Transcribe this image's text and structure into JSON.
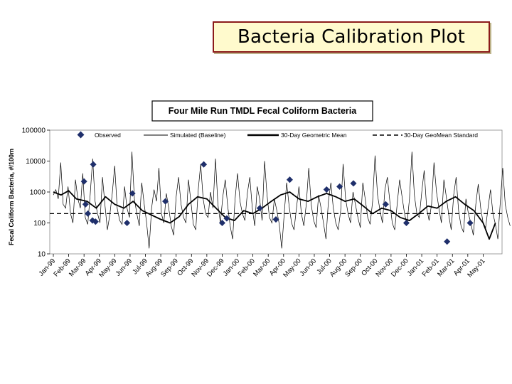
{
  "slide": {
    "title": "Bacteria Calibration Plot"
  },
  "chart_data": {
    "type": "line",
    "title": "Four Mile Run TMDL Fecal Coliform Bacteria",
    "ylabel": "Fecal Coliform Bacteria, #/100m",
    "xlabel": "",
    "yscale": "log",
    "ylim": [
      10,
      100000
    ],
    "y_ticks": [
      "100000",
      "10000",
      "1000",
      "100",
      "10"
    ],
    "x_categories": [
      "Jan-99",
      "Feb-99",
      "Mar-99",
      "Apr-99",
      "May-99",
      "Jun-99",
      "Jul-99",
      "Aug-99",
      "Sep-99",
      "Oct-99",
      "Nov-99",
      "Dec-99",
      "Jan-00",
      "Feb-00",
      "Mar-00",
      "Apr-00",
      "May-00",
      "Jun-00",
      "Jul-00",
      "Aug-00",
      "Sep-00",
      "Oct-00",
      "Nov-00",
      "Dec-00",
      "Jan-01",
      "Feb-01",
      "Mar-01",
      "Apr-01",
      "May-01"
    ],
    "legend_position": "top",
    "grid": false,
    "colors": {
      "observed": "#1f2f6b",
      "line": "#000000"
    },
    "series": [
      {
        "name": "Observed",
        "kind": "marker",
        "points": [
          {
            "x": 2.0,
            "y": 2200
          },
          {
            "x": 2.1,
            "y": 400
          },
          {
            "x": 2.25,
            "y": 200
          },
          {
            "x": 2.6,
            "y": 7800
          },
          {
            "x": 2.55,
            "y": 120
          },
          {
            "x": 2.75,
            "y": 110
          },
          {
            "x": 4.8,
            "y": 100
          },
          {
            "x": 5.15,
            "y": 900
          },
          {
            "x": 7.3,
            "y": 500
          },
          {
            "x": 9.8,
            "y": 7800
          },
          {
            "x": 11.0,
            "y": 100
          },
          {
            "x": 11.3,
            "y": 140
          },
          {
            "x": 13.45,
            "y": 300
          },
          {
            "x": 14.5,
            "y": 130
          },
          {
            "x": 15.4,
            "y": 2500
          },
          {
            "x": 17.8,
            "y": 1200
          },
          {
            "x": 18.65,
            "y": 1500
          },
          {
            "x": 19.55,
            "y": 1900
          },
          {
            "x": 21.65,
            "y": 400
          },
          {
            "x": 23.0,
            "y": 100
          },
          {
            "x": 25.65,
            "y": 25
          },
          {
            "x": 27.15,
            "y": 100
          }
        ]
      },
      {
        "name": "Simulated (Baseline)",
        "kind": "line",
        "start": 0,
        "step": 0.16,
        "values": [
          800,
          1200,
          600,
          9000,
          400,
          300,
          1500,
          200,
          100,
          2500,
          600,
          300,
          4000,
          150,
          90,
          800,
          12000,
          500,
          200,
          100,
          3000,
          400,
          60,
          180,
          900,
          7000,
          300,
          120,
          90,
          1500,
          300,
          150,
          20000,
          600,
          200,
          80,
          2000,
          400,
          100,
          15,
          300,
          1200,
          500,
          6000,
          200,
          100,
          900,
          300,
          80,
          40,
          700,
          3000,
          400,
          150,
          100,
          2500,
          500,
          90,
          60,
          1200,
          8000,
          600,
          200,
          150,
          1000,
          300,
          12000,
          400,
          100,
          700,
          2500,
          350,
          80,
          30,
          600,
          4000,
          500,
          200,
          120,
          900,
          3000,
          300,
          80,
          1500,
          600,
          120,
          10000,
          800,
          150,
          100,
          600,
          250,
          90,
          15,
          200,
          2000,
          350,
          100,
          60,
          300,
          1500,
          200,
          80,
          400,
          6000,
          400,
          120,
          70,
          800,
          300,
          100,
          30,
          500,
          2000,
          300,
          100,
          60,
          250,
          8000,
          600,
          200,
          100,
          1000,
          400,
          150,
          70,
          2000,
          600,
          150,
          90,
          500,
          15000,
          800,
          250,
          100,
          1200,
          3000,
          500,
          100,
          60,
          400,
          2500,
          700,
          200,
          90,
          600,
          20000,
          800,
          200,
          150,
          1000,
          5000,
          300,
          120,
          400,
          9000,
          1000,
          300,
          100,
          2500,
          700,
          180,
          60,
          800,
          3000,
          250,
          80,
          50,
          600,
          200,
          100,
          40,
          400,
          1800,
          300,
          100,
          70,
          300,
          1200,
          200,
          90,
          30,
          500,
          6000,
          400,
          150,
          80
        ],
        "style": "thin"
      },
      {
        "name": "30-Day Geometric Mean",
        "kind": "line",
        "points": [
          {
            "x": 0,
            "y": 1000
          },
          {
            "x": 0.5,
            "y": 800
          },
          {
            "x": 1.0,
            "y": 1100
          },
          {
            "x": 1.5,
            "y": 600
          },
          {
            "x": 2.2,
            "y": 500
          },
          {
            "x": 2.8,
            "y": 300
          },
          {
            "x": 3.4,
            "y": 700
          },
          {
            "x": 4.0,
            "y": 400
          },
          {
            "x": 4.6,
            "y": 300
          },
          {
            "x": 5.2,
            "y": 500
          },
          {
            "x": 5.8,
            "y": 250
          },
          {
            "x": 6.4,
            "y": 180
          },
          {
            "x": 7.0,
            "y": 130
          },
          {
            "x": 7.6,
            "y": 100
          },
          {
            "x": 8.2,
            "y": 160
          },
          {
            "x": 8.8,
            "y": 400
          },
          {
            "x": 9.4,
            "y": 700
          },
          {
            "x": 10.0,
            "y": 600
          },
          {
            "x": 10.6,
            "y": 300
          },
          {
            "x": 11.2,
            "y": 150
          },
          {
            "x": 11.8,
            "y": 120
          },
          {
            "x": 12.4,
            "y": 250
          },
          {
            "x": 13.0,
            "y": 200
          },
          {
            "x": 13.6,
            "y": 300
          },
          {
            "x": 14.2,
            "y": 500
          },
          {
            "x": 14.8,
            "y": 800
          },
          {
            "x": 15.4,
            "y": 1000
          },
          {
            "x": 16.0,
            "y": 600
          },
          {
            "x": 16.6,
            "y": 500
          },
          {
            "x": 17.2,
            "y": 700
          },
          {
            "x": 17.8,
            "y": 900
          },
          {
            "x": 18.4,
            "y": 700
          },
          {
            "x": 19.0,
            "y": 500
          },
          {
            "x": 19.6,
            "y": 600
          },
          {
            "x": 20.2,
            "y": 350
          },
          {
            "x": 20.8,
            "y": 200
          },
          {
            "x": 21.4,
            "y": 300
          },
          {
            "x": 22.0,
            "y": 250
          },
          {
            "x": 22.6,
            "y": 150
          },
          {
            "x": 23.2,
            "y": 120
          },
          {
            "x": 23.8,
            "y": 200
          },
          {
            "x": 24.4,
            "y": 350
          },
          {
            "x": 25.0,
            "y": 300
          },
          {
            "x": 25.6,
            "y": 500
          },
          {
            "x": 26.2,
            "y": 700
          },
          {
            "x": 26.8,
            "y": 400
          },
          {
            "x": 27.4,
            "y": 250
          },
          {
            "x": 28.0,
            "y": 100
          },
          {
            "x": 28.4,
            "y": 30
          },
          {
            "x": 28.8,
            "y": 100
          }
        ],
        "style": "thick"
      },
      {
        "name": "30-Day GeoMean Standard",
        "kind": "hline",
        "value": 200,
        "style": "dashed"
      }
    ]
  }
}
